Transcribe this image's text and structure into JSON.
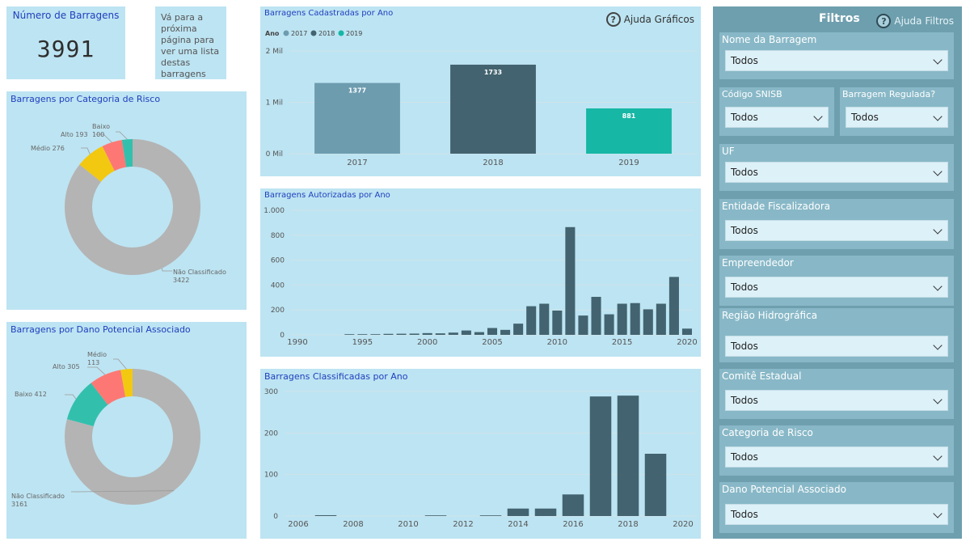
{
  "kpi": {
    "title": "Número de Barragens",
    "value": "3991"
  },
  "note": {
    "text": "Vá para a próxima página para ver uma lista destas barragens"
  },
  "help": {
    "charts_label": "Ajuda Gráficos",
    "filters_label": "Ajuda Filtros",
    "icon": "question-circle-icon"
  },
  "colors": {
    "panel_bg": "#bde4f2",
    "title_blue": "#1f3fbf",
    "grey": "#b4b4b4",
    "yellow": "#f2c811",
    "salmon": "#fd7874",
    "teal": "#32c0ad",
    "dark_slate": "#42636f",
    "light_slate": "#6d9caf",
    "cyan": "#16b7a5",
    "filter_bg": "#6e9fae",
    "filter_box": "#88b8c7"
  },
  "chart_data": [
    {
      "id": "risco",
      "type": "pie",
      "title": "Barragens por Categoria de Risco",
      "slices": [
        {
          "label": "Não Classificado",
          "value": 3422,
          "color": "#b4b4b4"
        },
        {
          "label": "Médio",
          "value": 276,
          "color": "#f2c811"
        },
        {
          "label": "Alto",
          "value": 193,
          "color": "#fd7874"
        },
        {
          "label": "Baixo",
          "value": 100,
          "color": "#32c0ad"
        }
      ]
    },
    {
      "id": "dano",
      "type": "pie",
      "title": "Barragens por Dano Potencial Associado",
      "slices": [
        {
          "label": "Não Classificado",
          "value": 3161,
          "color": "#b4b4b4"
        },
        {
          "label": "Baixo",
          "value": 412,
          "color": "#32c0ad"
        },
        {
          "label": "Alto",
          "value": 305,
          "color": "#fd7874"
        },
        {
          "label": "Médio",
          "value": 113,
          "color": "#f2c811"
        }
      ]
    },
    {
      "id": "cadastradas",
      "type": "bar",
      "title": "Barragens Cadastradas por Ano",
      "legend_title": "Ano",
      "categories": [
        "2017",
        "2018",
        "2019"
      ],
      "values": [
        1377,
        1733,
        881
      ],
      "colors": [
        "#6d9caf",
        "#42636f",
        "#16b7a5"
      ],
      "ylim": [
        0,
        2000
      ],
      "yticks": [
        0,
        1000,
        2000
      ],
      "ytick_labels": [
        "0 Mil",
        "1 Mil",
        "2 Mil"
      ],
      "grid": true,
      "legend": "top-left"
    },
    {
      "id": "autorizadas",
      "type": "bar",
      "title": "Barragens Autorizadas por Ano",
      "x": [
        1994,
        1995,
        1996,
        1997,
        1998,
        1999,
        2000,
        2001,
        2002,
        2003,
        2004,
        2005,
        2006,
        2007,
        2008,
        2009,
        2010,
        2011,
        2012,
        2013,
        2014,
        2015,
        2016,
        2017,
        2018,
        2019,
        2020
      ],
      "values": [
        3,
        4,
        5,
        8,
        9,
        10,
        14,
        12,
        18,
        35,
        22,
        55,
        40,
        90,
        230,
        250,
        195,
        865,
        155,
        305,
        165,
        250,
        255,
        205,
        250,
        465,
        50
      ],
      "extra": [
        {
          "x": 2020,
          "value": 5
        }
      ],
      "xlim": [
        1990,
        2020
      ],
      "xticks": [
        1990,
        1995,
        2000,
        2005,
        2010,
        2015,
        2020
      ],
      "ylim": [
        0,
        1000
      ],
      "yticks": [
        0,
        200,
        400,
        600,
        800,
        1000
      ],
      "ytick_labels": [
        "0",
        "200",
        "400",
        "600",
        "800",
        "1.000"
      ],
      "grid": true
    },
    {
      "id": "classificadas",
      "type": "bar",
      "title": "Barragens Classificadas por Ano",
      "x": [
        2007,
        2011,
        2013,
        2014,
        2015,
        2016,
        2017,
        2018,
        2019
      ],
      "values": [
        2,
        1,
        1,
        18,
        18,
        52,
        288,
        290,
        150
      ],
      "xlim": [
        2006,
        2020
      ],
      "xticks": [
        2006,
        2008,
        2010,
        2012,
        2014,
        2016,
        2018,
        2020
      ],
      "ylim": [
        0,
        300
      ],
      "yticks": [
        0,
        100,
        200,
        300
      ],
      "ytick_labels": [
        "0",
        "100",
        "200",
        "300"
      ],
      "grid": true
    }
  ],
  "filters": {
    "title": "Filtros",
    "items": [
      {
        "label": "Nome da Barragem",
        "value": "Todos"
      },
      {
        "label": "Código SNISB",
        "value": "Todos"
      },
      {
        "label": "Barragem Regulada?",
        "value": "Todos"
      },
      {
        "label": "UF",
        "value": "Todos"
      },
      {
        "label": "Entidade Fiscalizadora",
        "value": "Todos"
      },
      {
        "label": "Empreendedor",
        "value": "Todos"
      },
      {
        "label": "Região Hidrográfica",
        "value": "Todos"
      },
      {
        "label": "Comitê Estadual",
        "value": "Todos"
      },
      {
        "label": "Categoria de Risco",
        "value": "Todos"
      },
      {
        "label": "Dano Potencial Associado",
        "value": "Todos"
      }
    ]
  }
}
